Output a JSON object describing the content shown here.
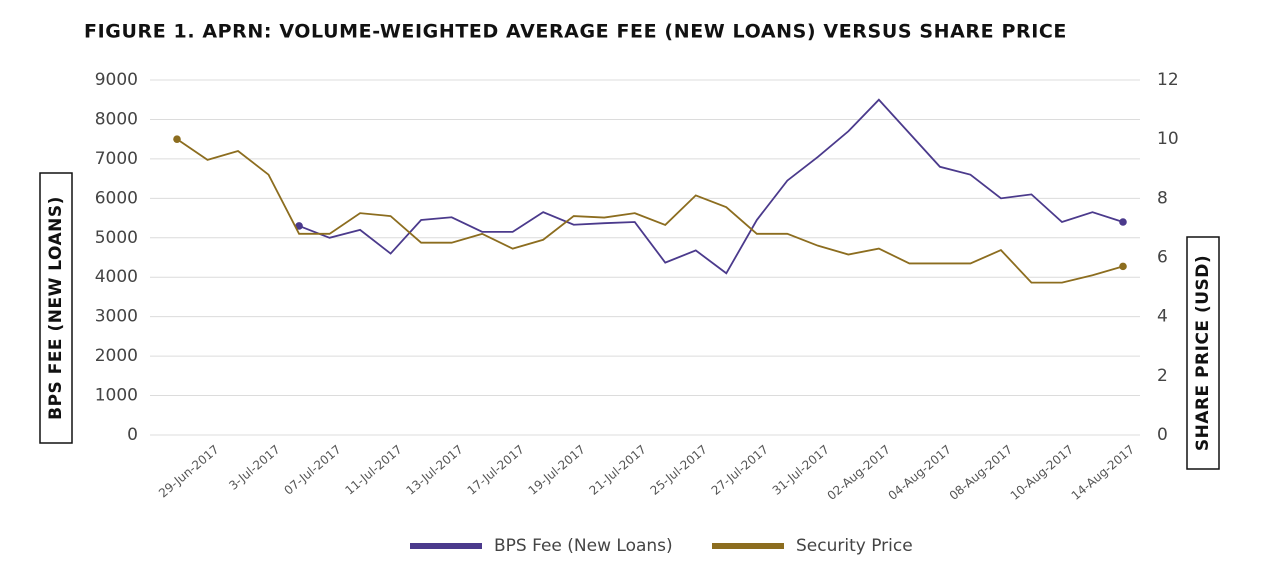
{
  "chart_data": {
    "type": "line",
    "title": "FIGURE 1. APRN: VOLUME-WEIGHTED AVERAGE FEE (NEW LOANS) VERSUS SHARE PRICE",
    "ylabel": "BPS FEE (NEW LOANS)",
    "y2label": "SHARE PRICE (USD)",
    "categories": [
      null,
      "29-Jun-2017",
      null,
      "3-Jul-2017",
      null,
      "07-Jul-2017",
      null,
      "11-Jul-2017",
      null,
      "13-Jul-2017",
      null,
      "17-Jul-2017",
      null,
      "19-Jul-2017",
      null,
      "21-Jul-2017",
      null,
      "25-Jul-2017",
      null,
      "27-Jul-2017",
      null,
      "31-Jul-2017",
      null,
      "02-Aug-2017",
      null,
      "04-Aug-2017",
      null,
      "08-Aug-2017",
      null,
      "10-Aug-2017",
      null,
      "14-Aug-2017"
    ],
    "series": [
      {
        "name": "BPS Fee (New Loans)",
        "color": "#4b3a8c",
        "axis": "y",
        "values": [
          null,
          null,
          null,
          null,
          5300,
          5000,
          5200,
          4600,
          5450,
          5520,
          5150,
          5150,
          5650,
          5330,
          5370,
          5400,
          4370,
          4680,
          4100,
          5450,
          6450,
          7050,
          7700,
          8500,
          7650,
          6800,
          6600,
          6000,
          6100,
          5400,
          5650,
          5400
        ]
      },
      {
        "name": "Security Price",
        "color": "#8c6d1f",
        "axis": "y2",
        "values": [
          10.0,
          9.3,
          9.6,
          8.8,
          6.8,
          6.8,
          7.5,
          7.4,
          6.5,
          6.5,
          6.8,
          6.3,
          6.6,
          7.4,
          7.35,
          7.5,
          7.1,
          8.1,
          7.7,
          6.8,
          6.8,
          6.4,
          6.1,
          6.3,
          5.8,
          5.8,
          5.8,
          6.25,
          5.15,
          5.15,
          5.4,
          5.7
        ]
      }
    ],
    "ylim": [
      0,
      9000
    ],
    "yticks": [
      0,
      1000,
      2000,
      3000,
      4000,
      5000,
      6000,
      7000,
      8000,
      9000
    ],
    "y2lim": [
      0,
      12
    ],
    "y2ticks": [
      0,
      2,
      4,
      6,
      8,
      10,
      12
    ],
    "grid": true,
    "legend": "bottom"
  }
}
